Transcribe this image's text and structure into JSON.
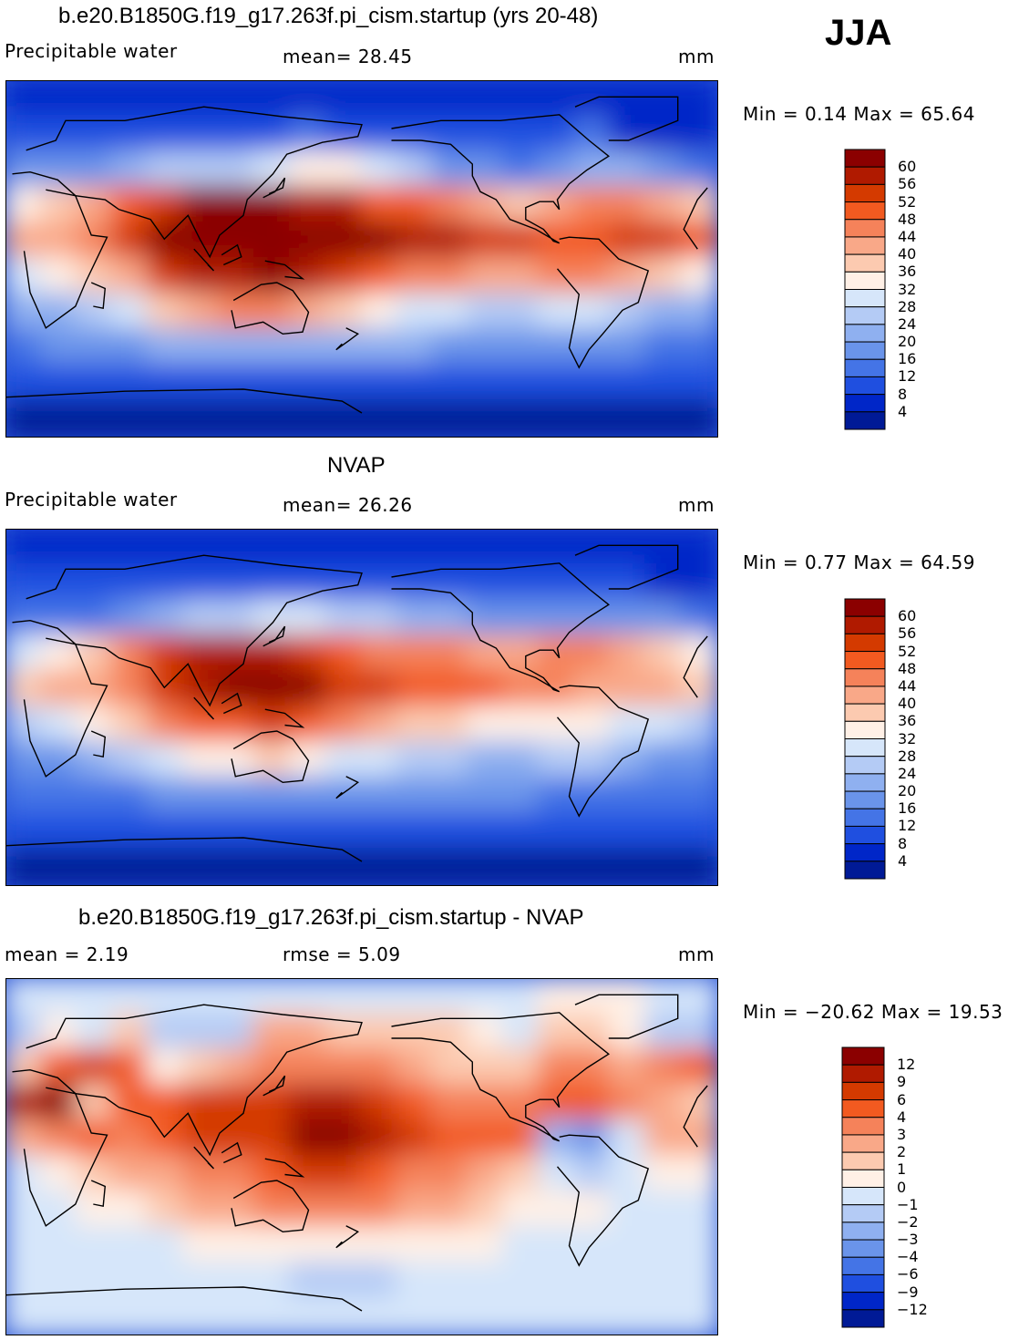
{
  "season": "JJA",
  "panels": [
    {
      "title": "b.e20.B1850G.f19_g17.263f.pi_cism.startup (yrs 20-48)",
      "left_label": "Precipitable water",
      "center_label": "mean=   28.45",
      "right_label": "mm",
      "minmax": "Min =    0.14  Max =   65.64",
      "colorbar": {
        "labels": [
          "60",
          "56",
          "52",
          "48",
          "44",
          "40",
          "36",
          "32",
          "28",
          "24",
          "20",
          "16",
          "12",
          "8",
          "4"
        ],
        "colors": [
          "#8b0000",
          "#b01a00",
          "#d43a00",
          "#f25a20",
          "#f5825a",
          "#f9a888",
          "#fccab0",
          "#fff0e6",
          "#d6e6fa",
          "#b4cbf5",
          "#8fb0f0",
          "#6a94ea",
          "#4474e6",
          "#1f4fe0",
          "#0026c8",
          "#001a96"
        ]
      },
      "map_field": [
        "BBBBBBBBBBBBBBBBBBBB",
        "CCCCCCCCDCCCCCCCDBBB",
        "EEEFGGGHIIHGEEDEFFED",
        "IJKMNPPPOOMMLKJKLLKJ",
        "KKLNPQQQQPPOONNMMNNM",
        "HIJKNOOPONMLLKKLLKJI",
        "FFGHJKLLKJIHHGGHHGFF",
        "DEEEFFFFFFFFEEEEEEDD",
        "CCCCCCCCCCCCCCCCCCCC",
        "AAAAAAAAAAAAAAAAAAAA"
      ]
    },
    {
      "title": "NVAP",
      "left_label": "Precipitable water",
      "center_label": "mean=   26.26",
      "right_label": "mm",
      "minmax": "Min =    0.77  Max =   64.59",
      "colorbar": {
        "labels": [
          "60",
          "56",
          "52",
          "48",
          "44",
          "40",
          "36",
          "32",
          "28",
          "24",
          "20",
          "16",
          "12",
          "8",
          "4"
        ],
        "colors": [
          "#8b0000",
          "#b01a00",
          "#d43a00",
          "#f25a20",
          "#f5825a",
          "#f9a888",
          "#fccab0",
          "#fff0e6",
          "#d6e6fa",
          "#b4cbf5",
          "#8fb0f0",
          "#6a94ea",
          "#4474e6",
          "#1f4fe0",
          "#0026c8",
          "#001a96"
        ]
      },
      "map_field": [
        "BBBBBBBBBBBBBBBBBBBB",
        "CCCCCCCCCCCCCCCCCCBB",
        "DDDEFGGHHGGFFEEEEEED",
        "HIJLNOOONMLLLKKLLKJI",
        "JKKLNOPPPNNMMMLLKKKJ",
        "GHIJLMMNMLKJJIIIIHHG",
        "EEFGHIIJIHHGGFFGGFEE",
        "DDDDEEEEEEEEEEEDDDDD",
        "CCCCCCCCCCCCCCCCCCCC",
        "AAAAAAAAAAAAAAAAAAAA"
      ]
    },
    {
      "title": "b.e20.B1850G.f19_g17.263f.pi_cism.startup - NVAP",
      "left_label": "mean =     2.19",
      "center_label": "rmse =     5.09",
      "right_label": "mm",
      "minmax": "Min = −20.62  Max =   19.53",
      "colorbar": {
        "labels": [
          "12",
          "9",
          "6",
          "4",
          "3",
          "2",
          "1",
          "0",
          "−1",
          "−2",
          "−3",
          "−4",
          "−6",
          "−9",
          "−12"
        ],
        "colors": [
          "#8b0000",
          "#b01a00",
          "#d43a00",
          "#f25a20",
          "#f5825a",
          "#f9a888",
          "#fccab0",
          "#fff0e6",
          "#d6e6fa",
          "#b4cbf5",
          "#8fb0f0",
          "#6a94ea",
          "#4474e6",
          "#1f4fe0",
          "#0026c8",
          "#001a96"
        ]
      },
      "map_field": [
        "HHHHHHHHHHHHHHHIIIHH",
        "GIHJGGGKKJJJJIHJJIGG",
        "JMNMIJKLLLLKJJJLLKLM",
        "OPJMMNNNOONMLLLMMLKJ",
        "KLMLMNNNPPONMMMFEHKK",
        "HIJKKLLMNNMLLKJHGHII",
        "HHIIJKKLLLLKKJIIIHHH",
        "HHHHHIIIIIIIIIHHHHHH",
        "HHHHHHHHGGGHHHHHHHHH",
        "HHHHHHHHHHHHHHHHHHHH"
      ]
    }
  ]
}
